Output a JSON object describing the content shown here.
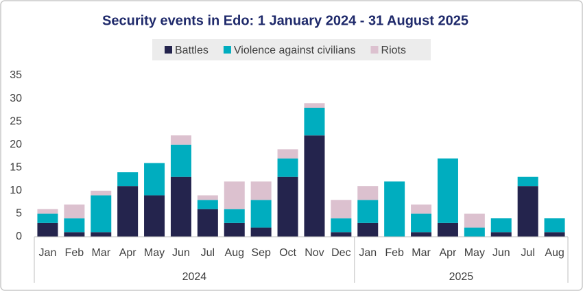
{
  "chart_data": {
    "type": "stacked-bar",
    "title": "Security events in Edo: 1 January 2024 - 31 August 2025",
    "groups": [
      {
        "label": "2024",
        "categories": [
          "Jan",
          "Feb",
          "Mar",
          "Apr",
          "May",
          "Jun",
          "Jul",
          "Aug",
          "Sep",
          "Oct",
          "Nov",
          "Dec"
        ]
      },
      {
        "label": "2025",
        "categories": [
          "Jan",
          "Feb",
          "Mar",
          "Apr",
          "May",
          "Jun",
          "Jul",
          "Aug"
        ]
      }
    ],
    "series": [
      {
        "name": "Battles",
        "color": "#24244d",
        "values": [
          3,
          1,
          1,
          11,
          9,
          13,
          6,
          3,
          2,
          13,
          22,
          1,
          3,
          0,
          1,
          3,
          0,
          1,
          11,
          1
        ]
      },
      {
        "name": "Violence against civilians",
        "color": "#00adbf",
        "values": [
          2,
          3,
          8,
          3,
          7,
          7,
          2,
          3,
          6,
          4,
          6,
          3,
          5,
          12,
          4,
          14,
          2,
          3,
          2,
          3
        ]
      },
      {
        "name": "Riots",
        "color": "#dcc1cf",
        "values": [
          1,
          3,
          1,
          0,
          0,
          2,
          1,
          6,
          4,
          2,
          1,
          4,
          3,
          0,
          2,
          0,
          3,
          0,
          0,
          0
        ]
      }
    ],
    "ylim": [
      0,
      35
    ],
    "yticks": [
      0,
      5,
      10,
      15,
      20,
      25,
      30,
      35
    ],
    "grid": false,
    "legend": "top"
  }
}
